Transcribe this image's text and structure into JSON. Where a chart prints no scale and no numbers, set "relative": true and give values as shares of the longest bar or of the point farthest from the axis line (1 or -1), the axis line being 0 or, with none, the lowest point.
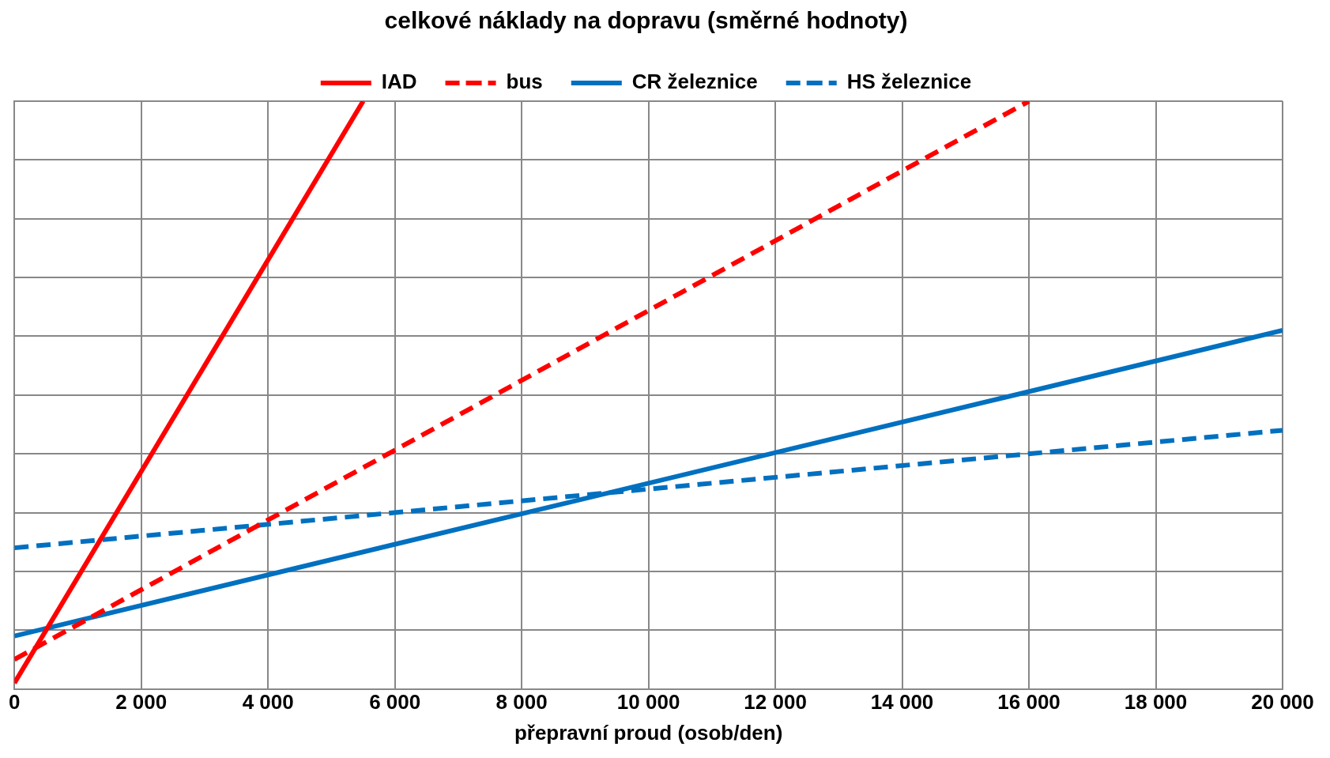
{
  "chart_data": {
    "type": "line",
    "title": "celkové náklady na dopravu (směrné hodnoty)",
    "xlabel": "přepravní proud (osob/den)",
    "relative": true,
    "legend": "top",
    "grid": true,
    "marker": "none",
    "xlim": [
      0,
      20000
    ],
    "xticks": [
      0,
      {
        "value": 2000,
        "label": "2 000"
      },
      {
        "value": 4000,
        "label": "4 000"
      },
      {
        "value": 6000,
        "label": "6 000"
      },
      {
        "value": 8000,
        "label": "8 000"
      },
      {
        "value": 10000,
        "label": "10 000"
      },
      {
        "value": 12000,
        "label": "12 000"
      },
      {
        "value": 14000,
        "label": "14 000"
      },
      {
        "value": 16000,
        "label": "16 000"
      },
      {
        "value": 18000,
        "label": "18 000"
      },
      {
        "value": 20000,
        "label": "20 000"
      }
    ],
    "series": [
      {
        "name": "IAD",
        "color": "#ff0000",
        "line_style": "solid",
        "x": [
          0,
          5500
        ],
        "values": [
          0.01,
          1
        ]
      },
      {
        "name": "bus",
        "color": "#ff0000",
        "line_style": "dashed",
        "x": [
          0,
          16000
        ],
        "values": [
          0.05,
          1
        ]
      },
      {
        "name": "CR železnice",
        "color": "#0070c0",
        "line_style": "solid",
        "x": [
          0,
          20000
        ],
        "values": [
          0.09,
          0.61
        ]
      },
      {
        "name": "HS železnice",
        "color": "#0070c0",
        "line_style": "dashed",
        "x": [
          0,
          20000
        ],
        "values": [
          0.24,
          0.44
        ]
      }
    ]
  }
}
